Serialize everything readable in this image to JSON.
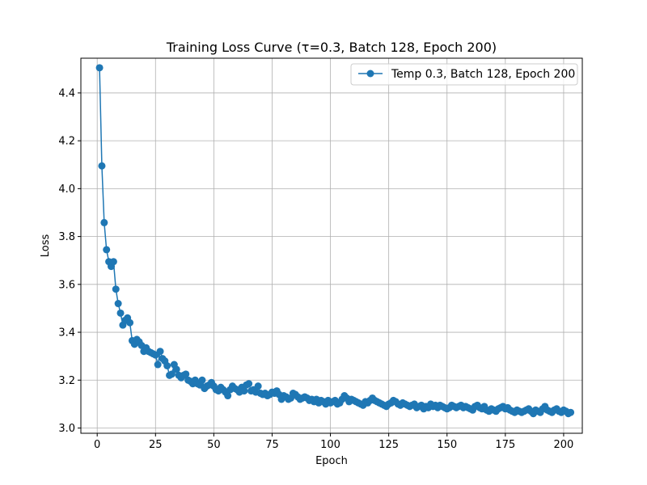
{
  "chart_data": {
    "type": "line",
    "title": "Training Loss Curve (τ=0.3, Batch 128, Epoch 200)",
    "xlabel": "Epoch",
    "ylabel": "Loss",
    "xlim": [
      -7,
      208
    ],
    "ylim": [
      2.978,
      4.545
    ],
    "xticks": [
      0,
      25,
      50,
      75,
      100,
      125,
      150,
      175,
      200
    ],
    "yticks": [
      3.0,
      3.2,
      3.4,
      3.6,
      3.8,
      4.0,
      4.2,
      4.4
    ],
    "ytick_labels": [
      "3.0",
      "3.2",
      "3.4",
      "3.6",
      "3.8",
      "4.0",
      "4.2",
      "4.4"
    ],
    "grid": true,
    "legend_position": "top-right",
    "markers": "circle",
    "series": [
      {
        "name": "Temp 0.3, Batch 128, Epoch 200",
        "color": "#1f77b4",
        "x_start": 1,
        "x_step": 1,
        "values": [
          4.505,
          4.095,
          3.858,
          3.745,
          3.695,
          3.675,
          3.695,
          3.58,
          3.52,
          3.48,
          3.43,
          3.45,
          3.46,
          3.44,
          3.365,
          3.35,
          3.37,
          3.36,
          3.345,
          3.32,
          3.335,
          3.32,
          3.315,
          3.31,
          3.305,
          3.265,
          3.32,
          3.29,
          3.28,
          3.26,
          3.22,
          3.225,
          3.265,
          3.245,
          3.22,
          3.21,
          3.22,
          3.225,
          3.2,
          3.195,
          3.185,
          3.2,
          3.185,
          3.18,
          3.2,
          3.165,
          3.175,
          3.18,
          3.19,
          3.175,
          3.16,
          3.155,
          3.17,
          3.16,
          3.15,
          3.135,
          3.16,
          3.175,
          3.165,
          3.16,
          3.15,
          3.17,
          3.155,
          3.18,
          3.185,
          3.155,
          3.16,
          3.15,
          3.175,
          3.145,
          3.14,
          3.145,
          3.135,
          3.14,
          3.15,
          3.145,
          3.155,
          3.14,
          3.12,
          3.135,
          3.13,
          3.12,
          3.125,
          3.145,
          3.14,
          3.13,
          3.12,
          3.125,
          3.13,
          3.125,
          3.115,
          3.12,
          3.11,
          3.12,
          3.105,
          3.115,
          3.11,
          3.1,
          3.115,
          3.105,
          3.11,
          3.115,
          3.1,
          3.105,
          3.12,
          3.135,
          3.125,
          3.11,
          3.12,
          3.115,
          3.11,
          3.105,
          3.1,
          3.095,
          3.11,
          3.105,
          3.115,
          3.125,
          3.115,
          3.11,
          3.105,
          3.1,
          3.095,
          3.09,
          3.1,
          3.105,
          3.115,
          3.11,
          3.1,
          3.095,
          3.105,
          3.1,
          3.095,
          3.09,
          3.095,
          3.1,
          3.085,
          3.09,
          3.095,
          3.08,
          3.09,
          3.085,
          3.1,
          3.09,
          3.095,
          3.085,
          3.095,
          3.09,
          3.085,
          3.08,
          3.085,
          3.095,
          3.09,
          3.085,
          3.09,
          3.095,
          3.085,
          3.09,
          3.085,
          3.08,
          3.075,
          3.09,
          3.095,
          3.085,
          3.08,
          3.09,
          3.075,
          3.07,
          3.08,
          3.075,
          3.07,
          3.08,
          3.085,
          3.09,
          3.08,
          3.085,
          3.075,
          3.07,
          3.065,
          3.075,
          3.07,
          3.065,
          3.07,
          3.075,
          3.08,
          3.07,
          3.06,
          3.075,
          3.07,
          3.065,
          3.08,
          3.09,
          3.075,
          3.07,
          3.065,
          3.075,
          3.08,
          3.07,
          3.065,
          3.075,
          3.07,
          3.06,
          3.065
        ]
      }
    ]
  }
}
